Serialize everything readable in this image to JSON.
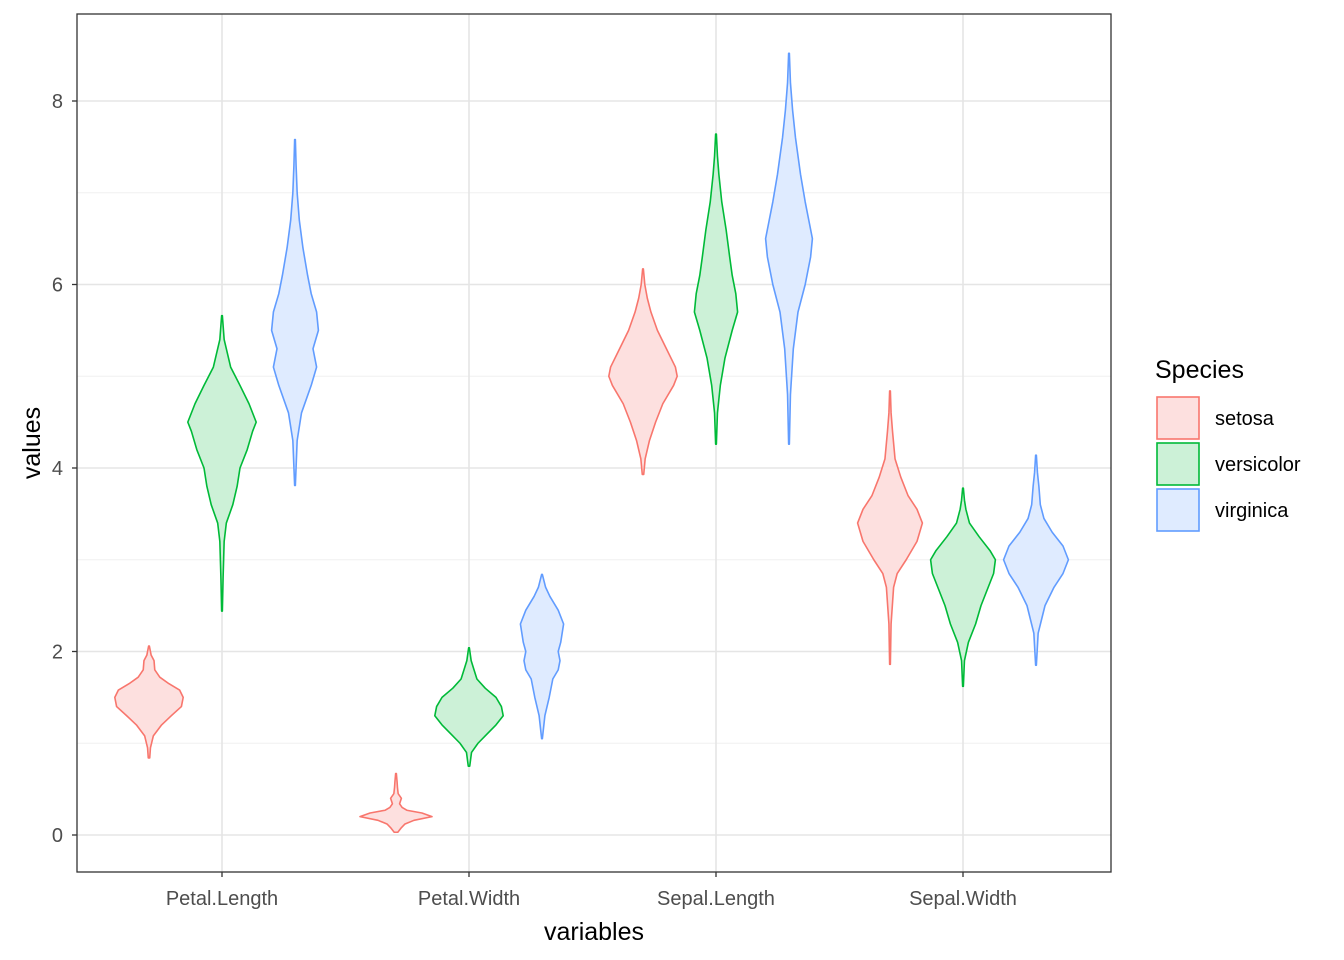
{
  "chart_data": {
    "type": "violin",
    "xlabel": "variables",
    "ylabel": "values",
    "categories": [
      "Petal.Length",
      "Petal.Width",
      "Sepal.Length",
      "Sepal.Width"
    ],
    "ylim": [
      -0.4,
      8.9
    ],
    "yticks": [
      0,
      2,
      4,
      6,
      8
    ],
    "grid": true,
    "legend": {
      "title": "Species",
      "position": "right",
      "entries": [
        "setosa",
        "versicolor",
        "virginica"
      ]
    },
    "series": [
      {
        "name": "setosa",
        "color": "#F8766D",
        "fill": "#FDE0DF",
        "violins": [
          {
            "category": "Petal.Length",
            "ymin": 0.84,
            "ymax": 2.06,
            "profile": [
              [
                0.84,
                0.02
              ],
              [
                0.95,
                0.04
              ],
              [
                1.08,
                0.12
              ],
              [
                1.2,
                0.35
              ],
              [
                1.3,
                0.62
              ],
              [
                1.4,
                0.9
              ],
              [
                1.5,
                0.95
              ],
              [
                1.58,
                0.85
              ],
              [
                1.65,
                0.55
              ],
              [
                1.72,
                0.3
              ],
              [
                1.8,
                0.16
              ],
              [
                1.9,
                0.14
              ],
              [
                1.96,
                0.06
              ],
              [
                2.06,
                0.01
              ]
            ]
          },
          {
            "category": "Petal.Width",
            "ymin": 0.03,
            "ymax": 0.67,
            "profile": [
              [
                0.03,
                0.05
              ],
              [
                0.08,
                0.15
              ],
              [
                0.12,
                0.25
              ],
              [
                0.16,
                0.5
              ],
              [
                0.2,
                1.0
              ],
              [
                0.24,
                0.72
              ],
              [
                0.27,
                0.3
              ],
              [
                0.3,
                0.17
              ],
              [
                0.34,
                0.1
              ],
              [
                0.4,
                0.15
              ],
              [
                0.45,
                0.06
              ],
              [
                0.52,
                0.04
              ],
              [
                0.58,
                0.03
              ],
              [
                0.67,
                0.01
              ]
            ]
          },
          {
            "category": "Sepal.Length",
            "ymin": 3.93,
            "ymax": 6.17,
            "profile": [
              [
                3.93,
                0.02
              ],
              [
                4.1,
                0.06
              ],
              [
                4.3,
                0.18
              ],
              [
                4.5,
                0.35
              ],
              [
                4.7,
                0.55
              ],
              [
                4.9,
                0.85
              ],
              [
                5.0,
                0.95
              ],
              [
                5.1,
                0.9
              ],
              [
                5.3,
                0.65
              ],
              [
                5.5,
                0.4
              ],
              [
                5.7,
                0.22
              ],
              [
                5.85,
                0.12
              ],
              [
                6.0,
                0.05
              ],
              [
                6.17,
                0.01
              ]
            ]
          },
          {
            "category": "Sepal.Width",
            "ymin": 1.86,
            "ymax": 4.84,
            "profile": [
              [
                1.86,
                0.01
              ],
              [
                2.3,
                0.03
              ],
              [
                2.7,
                0.1
              ],
              [
                2.85,
                0.2
              ],
              [
                3.0,
                0.45
              ],
              [
                3.2,
                0.75
              ],
              [
                3.4,
                0.9
              ],
              [
                3.55,
                0.75
              ],
              [
                3.7,
                0.5
              ],
              [
                3.9,
                0.3
              ],
              [
                4.1,
                0.14
              ],
              [
                4.4,
                0.07
              ],
              [
                4.6,
                0.03
              ],
              [
                4.84,
                0.01
              ]
            ]
          }
        ]
      },
      {
        "name": "versicolor",
        "color": "#00BA38",
        "fill": "#CCF1D7",
        "violins": [
          {
            "category": "Petal.Length",
            "ymin": 2.44,
            "ymax": 5.66,
            "profile": [
              [
                2.44,
                0.01
              ],
              [
                2.8,
                0.03
              ],
              [
                3.2,
                0.06
              ],
              [
                3.4,
                0.12
              ],
              [
                3.6,
                0.3
              ],
              [
                3.8,
                0.42
              ],
              [
                4.0,
                0.5
              ],
              [
                4.2,
                0.7
              ],
              [
                4.4,
                0.85
              ],
              [
                4.5,
                0.95
              ],
              [
                4.7,
                0.75
              ],
              [
                4.9,
                0.5
              ],
              [
                5.1,
                0.24
              ],
              [
                5.4,
                0.06
              ],
              [
                5.66,
                0.01
              ]
            ]
          },
          {
            "category": "Petal.Width",
            "ymin": 0.75,
            "ymax": 2.04,
            "profile": [
              [
                0.75,
                0.02
              ],
              [
                0.9,
                0.07
              ],
              [
                1.0,
                0.25
              ],
              [
                1.1,
                0.5
              ],
              [
                1.2,
                0.75
              ],
              [
                1.3,
                0.95
              ],
              [
                1.4,
                0.9
              ],
              [
                1.5,
                0.75
              ],
              [
                1.6,
                0.45
              ],
              [
                1.7,
                0.22
              ],
              [
                1.8,
                0.14
              ],
              [
                1.9,
                0.06
              ],
              [
                2.04,
                0.01
              ]
            ]
          },
          {
            "category": "Sepal.Length",
            "ymin": 4.26,
            "ymax": 7.64,
            "profile": [
              [
                4.26,
                0.01
              ],
              [
                4.6,
                0.04
              ],
              [
                4.9,
                0.12
              ],
              [
                5.2,
                0.25
              ],
              [
                5.5,
                0.45
              ],
              [
                5.7,
                0.6
              ],
              [
                5.9,
                0.55
              ],
              [
                6.1,
                0.45
              ],
              [
                6.3,
                0.38
              ],
              [
                6.6,
                0.28
              ],
              [
                6.9,
                0.16
              ],
              [
                7.2,
                0.08
              ],
              [
                7.4,
                0.04
              ],
              [
                7.64,
                0.01
              ]
            ]
          },
          {
            "category": "Sepal.Width",
            "ymin": 1.62,
            "ymax": 3.78,
            "profile": [
              [
                1.62,
                0.01
              ],
              [
                1.9,
                0.04
              ],
              [
                2.1,
                0.15
              ],
              [
                2.3,
                0.35
              ],
              [
                2.5,
                0.5
              ],
              [
                2.7,
                0.7
              ],
              [
                2.85,
                0.85
              ],
              [
                3.0,
                0.9
              ],
              [
                3.1,
                0.75
              ],
              [
                3.25,
                0.45
              ],
              [
                3.4,
                0.18
              ],
              [
                3.55,
                0.08
              ],
              [
                3.65,
                0.04
              ],
              [
                3.78,
                0.01
              ]
            ]
          }
        ]
      },
      {
        "name": "virginica",
        "color": "#619CFF",
        "fill": "#DFEBFF",
        "violins": [
          {
            "category": "Petal.Length",
            "ymin": 3.81,
            "ymax": 7.58,
            "profile": [
              [
                3.81,
                0.01
              ],
              [
                4.3,
                0.06
              ],
              [
                4.6,
                0.18
              ],
              [
                4.9,
                0.45
              ],
              [
                5.1,
                0.6
              ],
              [
                5.3,
                0.5
              ],
              [
                5.5,
                0.65
              ],
              [
                5.7,
                0.6
              ],
              [
                5.9,
                0.45
              ],
              [
                6.1,
                0.35
              ],
              [
                6.4,
                0.22
              ],
              [
                6.7,
                0.12
              ],
              [
                7.0,
                0.06
              ],
              [
                7.3,
                0.03
              ],
              [
                7.58,
                0.01
              ]
            ]
          },
          {
            "category": "Petal.Width",
            "ymin": 1.05,
            "ymax": 2.84,
            "profile": [
              [
                1.05,
                0.01
              ],
              [
                1.3,
                0.08
              ],
              [
                1.5,
                0.2
              ],
              [
                1.7,
                0.3
              ],
              [
                1.8,
                0.45
              ],
              [
                1.9,
                0.5
              ],
              [
                2.0,
                0.45
              ],
              [
                2.1,
                0.52
              ],
              [
                2.3,
                0.6
              ],
              [
                2.45,
                0.45
              ],
              [
                2.6,
                0.22
              ],
              [
                2.7,
                0.1
              ],
              [
                2.84,
                0.01
              ]
            ]
          },
          {
            "category": "Sepal.Length",
            "ymin": 4.26,
            "ymax": 8.52,
            "profile": [
              [
                4.26,
                0.01
              ],
              [
                4.8,
                0.04
              ],
              [
                5.3,
                0.12
              ],
              [
                5.7,
                0.25
              ],
              [
                6.0,
                0.45
              ],
              [
                6.3,
                0.6
              ],
              [
                6.5,
                0.65
              ],
              [
                6.7,
                0.55
              ],
              [
                6.9,
                0.45
              ],
              [
                7.2,
                0.32
              ],
              [
                7.6,
                0.18
              ],
              [
                7.9,
                0.1
              ],
              [
                8.2,
                0.04
              ],
              [
                8.52,
                0.01
              ]
            ]
          },
          {
            "category": "Sepal.Width",
            "ymin": 1.85,
            "ymax": 4.14,
            "profile": [
              [
                1.85,
                0.01
              ],
              [
                2.2,
                0.06
              ],
              [
                2.5,
                0.25
              ],
              [
                2.7,
                0.5
              ],
              [
                2.85,
                0.75
              ],
              [
                3.0,
                0.9
              ],
              [
                3.15,
                0.75
              ],
              [
                3.3,
                0.45
              ],
              [
                3.45,
                0.22
              ],
              [
                3.6,
                0.12
              ],
              [
                3.8,
                0.08
              ],
              [
                3.95,
                0.04
              ],
              [
                4.14,
                0.01
              ]
            ]
          }
        ]
      }
    ]
  }
}
